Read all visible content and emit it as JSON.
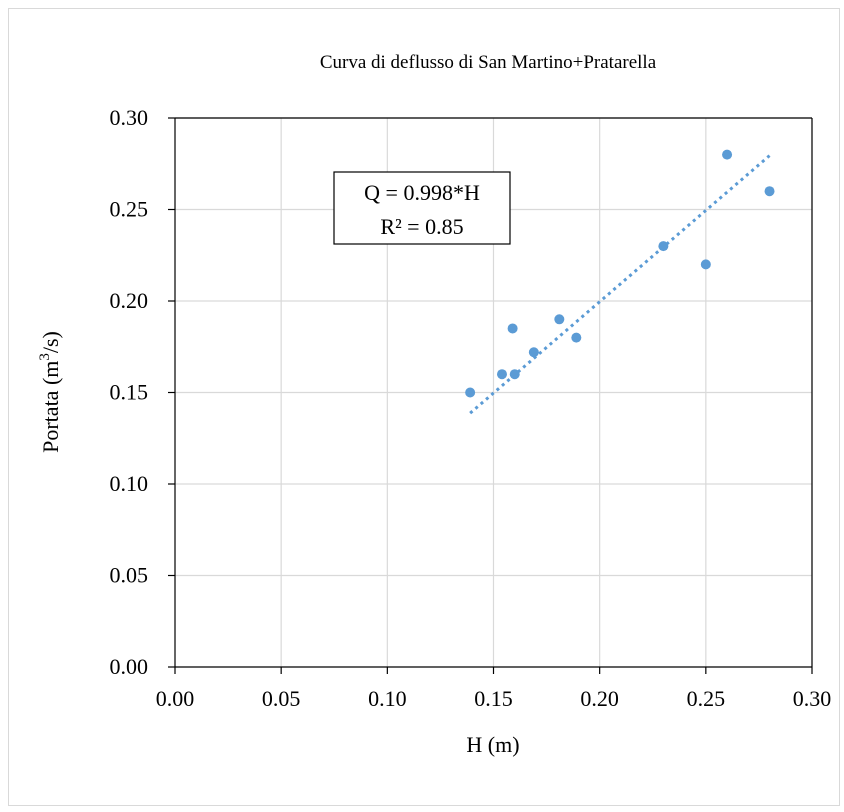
{
  "chart_data": {
    "type": "scatter",
    "title": "Curva di deflusso di San Martino+Pratarella",
    "xlabel": "H (m)",
    "ylabel_main": "Portata (m",
    "ylabel_sup": "3",
    "ylabel_tail": "/s)",
    "xlim": [
      0,
      0.3
    ],
    "ylim": [
      0,
      0.3
    ],
    "x_ticks": [
      "0.00",
      "0.05",
      "0.10",
      "0.15",
      "0.20",
      "0.25",
      "0.30"
    ],
    "y_ticks": [
      "0.00",
      "0.05",
      "0.10",
      "0.15",
      "0.20",
      "0.25",
      "0.30"
    ],
    "grid": true,
    "series": [
      {
        "points": [
          {
            "x": 0.139,
            "y": 0.15
          },
          {
            "x": 0.154,
            "y": 0.16
          },
          {
            "x": 0.159,
            "y": 0.185
          },
          {
            "x": 0.16,
            "y": 0.16
          },
          {
            "x": 0.169,
            "y": 0.172
          },
          {
            "x": 0.181,
            "y": 0.19
          },
          {
            "x": 0.189,
            "y": 0.18
          },
          {
            "x": 0.23,
            "y": 0.23
          },
          {
            "x": 0.25,
            "y": 0.22
          },
          {
            "x": 0.26,
            "y": 0.28
          },
          {
            "x": 0.28,
            "y": 0.26
          }
        ],
        "color": "#5b9bd5"
      }
    ],
    "trendline": {
      "slope": 0.998,
      "x_range": [
        0.139,
        0.28
      ],
      "style": "dotted",
      "color": "#5b9bd5",
      "equation": "Q = 0.998*H",
      "r2": "R² = 0.85"
    }
  }
}
